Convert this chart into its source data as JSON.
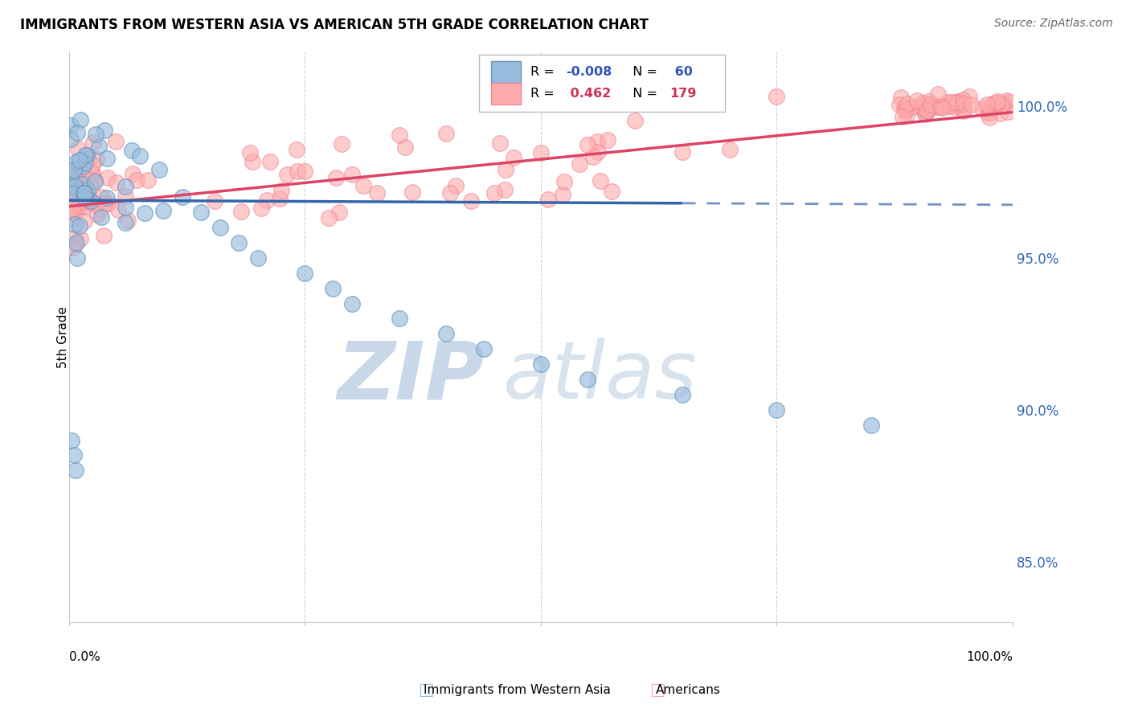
{
  "title": "IMMIGRANTS FROM WESTERN ASIA VS AMERICAN 5TH GRADE CORRELATION CHART",
  "source": "Source: ZipAtlas.com",
  "ylabel": "5th Grade",
  "yticks": [
    85.0,
    90.0,
    95.0,
    100.0
  ],
  "ytick_labels": [
    "85.0%",
    "90.0%",
    "95.0%",
    "100.0%"
  ],
  "xlim": [
    0.0,
    1.0
  ],
  "ylim": [
    83.0,
    101.8
  ],
  "blue_R": -0.008,
  "blue_N": 60,
  "pink_R": 0.462,
  "pink_N": 179,
  "blue_color": "#99BBDD",
  "pink_color": "#FFAAAA",
  "blue_edge_color": "#6699BB",
  "pink_edge_color": "#EE8899",
  "blue_line_color": "#3366AA",
  "pink_line_color": "#DD4466",
  "watermark_zip_color": "#C8D8E8",
  "watermark_atlas_color": "#C8D8E8",
  "blue_line_solid_end": 0.65,
  "blue_line_intercept": 96.9,
  "blue_line_slope": -0.15,
  "pink_line_intercept": 96.7,
  "pink_line_slope": 3.1
}
